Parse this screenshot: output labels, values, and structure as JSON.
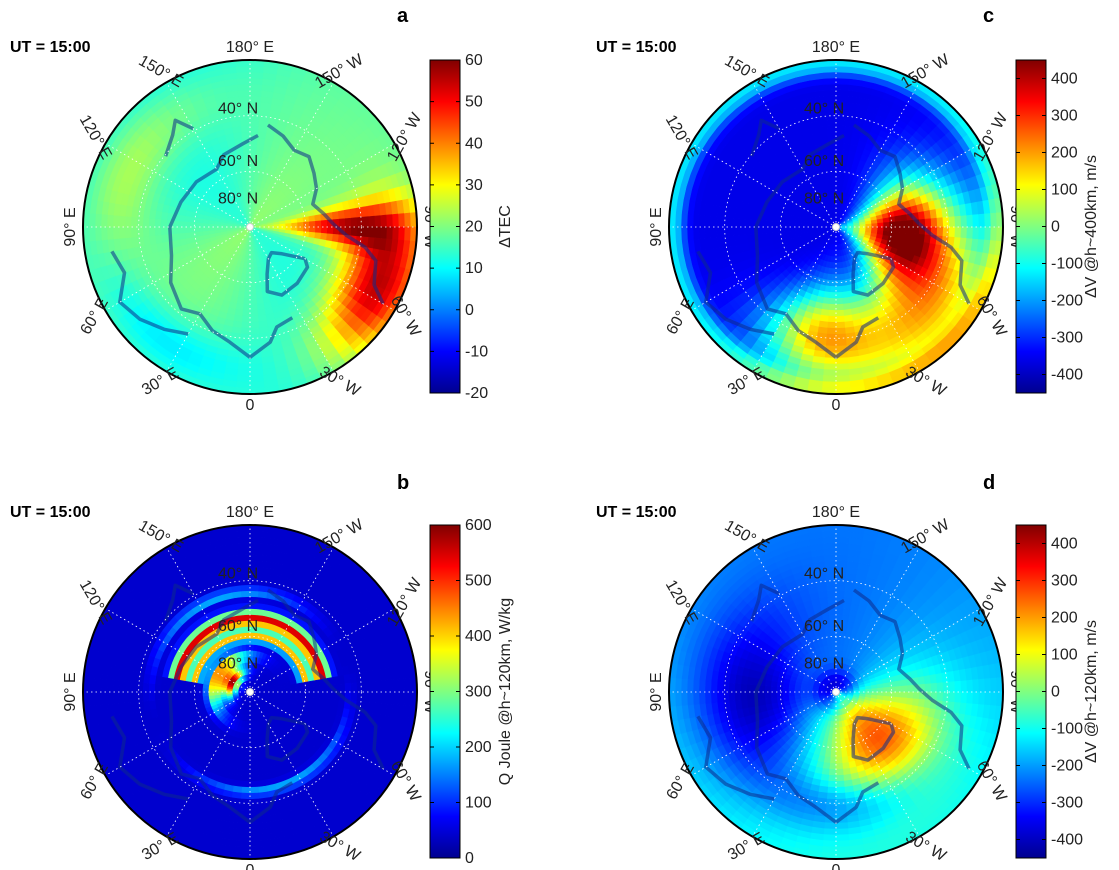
{
  "colors": {
    "jet": [
      "#00008f",
      "#0000ff",
      "#0080ff",
      "#00ffff",
      "#80ff80",
      "#ffff00",
      "#ff8000",
      "#ff0000",
      "#800000"
    ],
    "coast": "#0d2a8a",
    "border": "#000000",
    "grid": "#ffffff"
  },
  "grid_labels": {
    "lon": [
      "180° E",
      "150° E",
      "120° E",
      "90° E",
      "60° E",
      "30° E",
      "0",
      "30° W",
      "60° W",
      "90° W",
      "120° W",
      "150° W"
    ],
    "lat": [
      "40° N",
      "60° N",
      "80° N"
    ]
  },
  "chart_data": [
    {
      "type": "heatmap",
      "panel": "a",
      "letter": "a",
      "time_label": "UT = 15:00",
      "projection": "north polar stereographic",
      "colorbar": {
        "label": "ΔTEC",
        "ticks": [
          "60",
          "50",
          "40",
          "30",
          "20",
          "10",
          "0",
          "-10",
          "-20"
        ],
        "range": [
          -20,
          60
        ]
      },
      "features": {
        "background_level": 0.48,
        "hotspot_sector": "60° W – 90° W, 40° N – 80° N",
        "hotspot_value": 60
      }
    },
    {
      "type": "heatmap",
      "panel": "c",
      "letter": "c",
      "time_label": "UT = 15:00",
      "projection": "north polar stereographic",
      "colorbar": {
        "label": "ΔV @h~400km, m/s",
        "ticks": [
          "400",
          "300",
          "200",
          "100",
          "0",
          "-100",
          "-200",
          "-300",
          "-400"
        ],
        "range": [
          -450,
          450
        ]
      },
      "features": {
        "background_level": 0.08,
        "hotspot_sector": "60° W – 120° W, 60° N – 85° N",
        "hotspot_value": 450
      }
    },
    {
      "type": "heatmap",
      "panel": "b",
      "letter": "b",
      "time_label": "UT = 15:00",
      "projection": "north polar stereographic",
      "colorbar": {
        "label": "Q Joule @h~120km, W/kg",
        "ticks": [
          "600",
          "500",
          "400",
          "300",
          "200",
          "100",
          "0"
        ],
        "range": [
          0,
          600
        ]
      },
      "features": {
        "background_level": 0.06,
        "auroral_arcs": "around 60° N – 65° N, 150° W – 120° E",
        "inner_arc": "80° N, 90° E – 150° E",
        "peak_value": 600
      }
    },
    {
      "type": "heatmap",
      "panel": "d",
      "letter": "d",
      "time_label": "UT = 15:00",
      "projection": "north polar stereographic",
      "colorbar": {
        "label": "ΔV @h~120km, m/s",
        "ticks": [
          "400",
          "300",
          "200",
          "100",
          "0",
          "-100",
          "-200",
          "-300",
          "-400"
        ],
        "range": [
          -450,
          450
        ]
      },
      "features": {
        "background_level": 0.32,
        "warm_region": "0° – 90° W, 60° N – 85° N",
        "cold_region": "30° E – 120° E",
        "peak_value": 250
      }
    }
  ]
}
